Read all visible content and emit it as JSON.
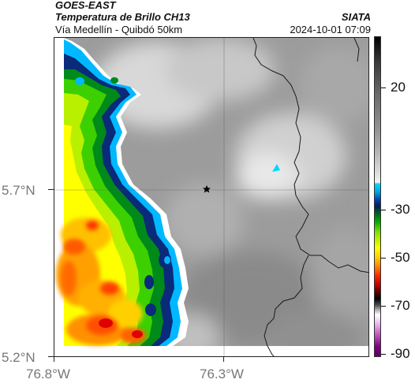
{
  "header": {
    "title": "GOES-EAST",
    "subtitle": "Temperatura de Brillo CH13",
    "route": "Vía Medellín - Quibdó 50km",
    "agency": "SIATA",
    "datetime": "2024-10-01 07:09"
  },
  "axes": {
    "lat_labels": [
      "5.7°N",
      "5.2°N"
    ],
    "lon_labels": [
      "76.8°W",
      "76.3°W"
    ]
  },
  "colorbar": {
    "tick_labels": [
      "20",
      "-30",
      "-50",
      "-70",
      "-90"
    ],
    "palette_colors": [
      "#000000",
      "#808080",
      "#ffffff",
      "#00d7ff",
      "#0040b0",
      "#00b000",
      "#ffff00",
      "#ff8000",
      "#ff2000",
      "#400000",
      "#ffffff",
      "#c060c0",
      "#800080"
    ]
  },
  "map": {
    "marker_icon": "star-icon",
    "background_color": "#9a9a9a",
    "coastline_color": "#1a1a1a"
  }
}
